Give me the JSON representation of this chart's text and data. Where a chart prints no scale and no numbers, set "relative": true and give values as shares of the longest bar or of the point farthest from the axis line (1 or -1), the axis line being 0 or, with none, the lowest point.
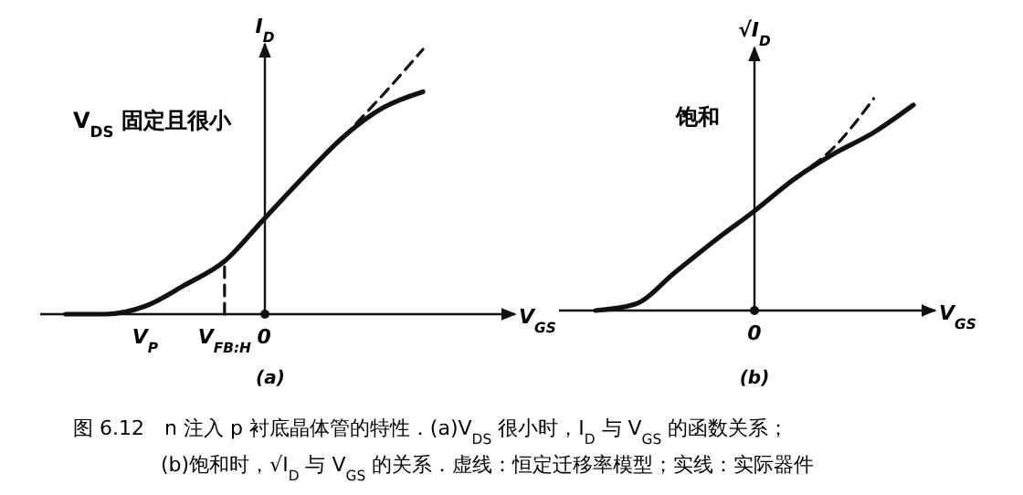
{
  "chart_data": [
    {
      "type": "line",
      "relative": true,
      "title": "(a)",
      "xlabel": "V$_{GS}$",
      "ylabel": "I$_{D}$",
      "annotations": [
        "V$_{DS}$ 固定且很小"
      ],
      "categories": [
        null,
        null,
        "V$_{P}$",
        null,
        "V$_{FB:H}$",
        "0",
        null,
        null,
        null,
        null,
        null,
        null
      ],
      "series": [
        {
          "color": "#111111",
          "line_style": "solid",
          "values": [
            0,
            0,
            0.03,
            0.11,
            0.2,
            0.36,
            0.52,
            0.67,
            0.78,
            0.84,
            null,
            null
          ]
        },
        {
          "color": "#111111",
          "line_style": "dashed",
          "values": [
            null,
            null,
            null,
            null,
            null,
            null,
            null,
            0.67,
            0.83,
            1,
            null,
            null
          ]
        },
        {
          "color": "#111111",
          "line_style": "dashed",
          "x": [
            "V$_{FB:H}$",
            "V$_{FB:H}$"
          ],
          "values": [
            0,
            0.2
          ]
        }
      ]
    },
    {
      "type": "line",
      "relative": true,
      "title": "(b)",
      "xlabel": "V$_{GS}$",
      "ylabel": "√I$_{D}$",
      "annotations": [
        "饱和",
        "0"
      ],
      "categories": [
        null,
        null,
        null,
        null,
        null,
        null,
        null,
        null,
        null
      ],
      "series": [
        {
          "color": "#111111",
          "line_style": "solid",
          "values": [
            0,
            0.03,
            0.18,
            0.33,
            0.47,
            0.62,
            0.74,
            0.84,
            0.97
          ]
        },
        {
          "color": "#111111",
          "line_style": "dashed",
          "values": [
            null,
            null,
            null,
            null,
            0.47,
            0.62,
            0.77,
            1,
            null
          ]
        }
      ]
    },
    {
      "type": "other",
      "annotations": [
        "图 6.12　n 注入 p 衬底晶体管的特性．(a)V$_{DS}$ 很小时，I$_{D}$ 与 V$_{GS}$ 的函数关系；",
        "(b)饱和时，√I$_{D}$ 与 V$_{GS}$ 的关系．虚线：恒定迁移率模型；实线：实际器件"
      ]
    }
  ]
}
